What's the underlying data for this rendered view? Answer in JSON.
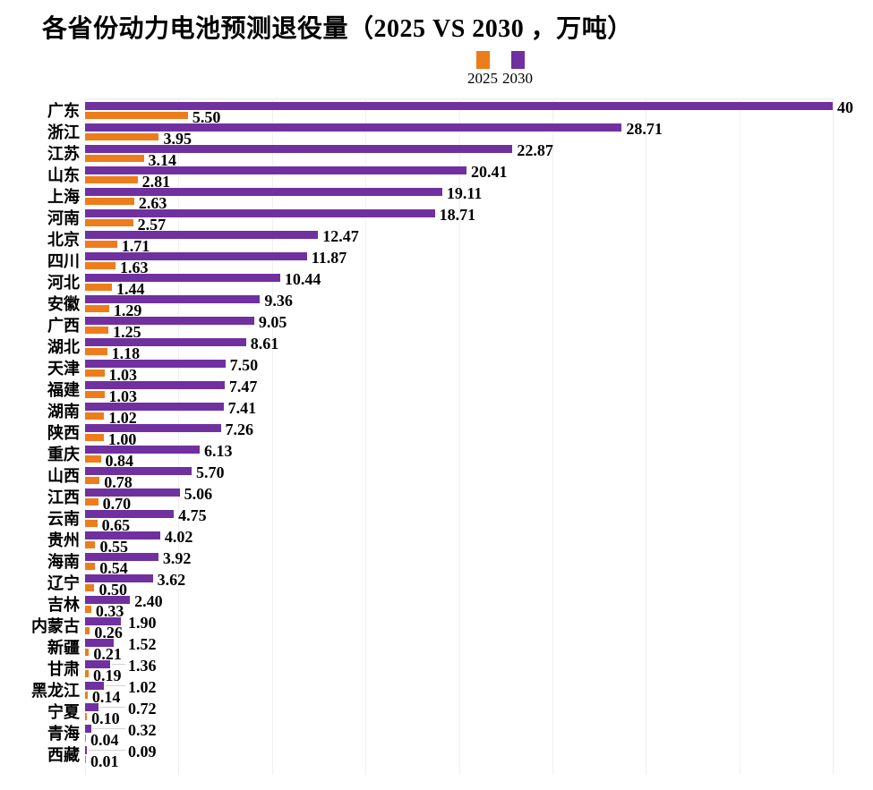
{
  "title": "各省份动力电池预测退役量（2025 VS 2030 ，万吨）",
  "legend": {
    "items": [
      {
        "label": "2025",
        "color": "#ED7D1B"
      },
      {
        "label": "2030",
        "color": "#7030A0"
      }
    ]
  },
  "colors": {
    "series_2025": "#ED7D1B",
    "series_2030": "#7030A0",
    "gridline": "#F0F0F0",
    "leader_line": "#D2D2D2",
    "text": "#000000",
    "background": "#FFFFFF"
  },
  "chart_data": {
    "type": "bar",
    "orientation": "horizontal",
    "title": "各省份动力电池预测退役量（2025 VS 2030 ，万吨）",
    "unit": "万吨",
    "xlim": [
      0,
      40
    ],
    "gridline_interval": 5,
    "grid": "faint-vertical",
    "legend_position": "top-center",
    "bar_order_top_to_bottom": [
      "2030",
      "2025"
    ],
    "categories": [
      "广东",
      "浙江",
      "江苏",
      "山东",
      "上海",
      "河南",
      "北京",
      "四川",
      "河北",
      "安徽",
      "广西",
      "湖北",
      "天津",
      "福建",
      "湖南",
      "陕西",
      "重庆",
      "山西",
      "江西",
      "云南",
      "贵州",
      "海南",
      "辽宁",
      "吉林",
      "内蒙古",
      "新疆",
      "甘肃",
      "黑龙江",
      "宁夏",
      "青海",
      "西藏"
    ],
    "series": [
      {
        "name": "2025",
        "color": "#ED7D1B",
        "values": [
          5.5,
          3.95,
          3.14,
          2.81,
          2.63,
          2.57,
          1.71,
          1.63,
          1.44,
          1.29,
          1.25,
          1.18,
          1.03,
          1.03,
          1.02,
          1.0,
          0.84,
          0.78,
          0.7,
          0.65,
          0.55,
          0.54,
          0.5,
          0.33,
          0.26,
          0.21,
          0.19,
          0.14,
          0.1,
          0.04,
          0.01
        ],
        "labels": [
          "5.50",
          "3.95",
          "3.14",
          "2.81",
          "2.63",
          "2.57",
          "1.71",
          "1.63",
          "1.44",
          "1.29",
          "1.25",
          "1.18",
          "1.03",
          "1.03",
          "1.02",
          "1.00",
          "0.84",
          "0.78",
          "0.70",
          "0.65",
          "0.55",
          "0.54",
          "0.50",
          "0.33",
          "0.26",
          "0.21",
          "0.19",
          "0.14",
          "0.10",
          "0.04",
          "0.01"
        ]
      },
      {
        "name": "2030",
        "color": "#7030A0",
        "values": [
          40,
          28.71,
          22.87,
          20.41,
          19.11,
          18.71,
          12.47,
          11.87,
          10.44,
          9.36,
          9.05,
          8.61,
          7.5,
          7.47,
          7.41,
          7.26,
          6.13,
          5.7,
          5.06,
          4.75,
          4.02,
          3.92,
          3.62,
          2.4,
          1.9,
          1.52,
          1.36,
          1.02,
          0.72,
          0.32,
          0.09
        ],
        "labels": [
          "40",
          "28.71",
          "22.87",
          "20.41",
          "19.11",
          "18.71",
          "12.47",
          "11.87",
          "10.44",
          "9.36",
          "9.05",
          "8.61",
          "7.50",
          "7.47",
          "7.41",
          "7.26",
          "6.13",
          "5.70",
          "5.06",
          "4.75",
          "4.02",
          "3.92",
          "3.62",
          "2.40",
          "1.90",
          "1.52",
          "1.36",
          "1.02",
          "0.72",
          "0.32",
          "0.09"
        ]
      }
    ],
    "leader_line_note": "2030 labels for values 1.36 and below sit at a fixed x with gray leader lines from bar end"
  }
}
